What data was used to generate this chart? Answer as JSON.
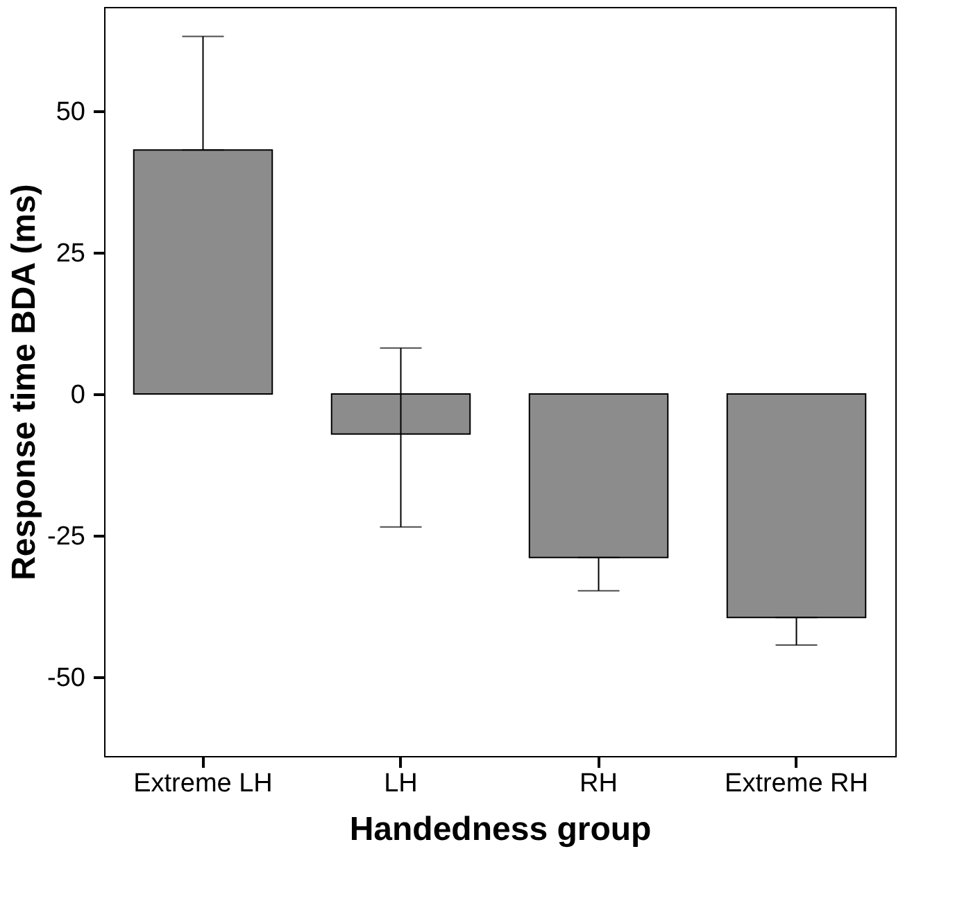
{
  "chart_data": {
    "type": "bar",
    "xlabel": "Handedness group",
    "ylabel": "Response time BDA (ms)",
    "categories": [
      "Extreme LH",
      "LH",
      "RH",
      "Extreme RH"
    ],
    "values": [
      43.1,
      -7.1,
      -28.9,
      -39.5
    ],
    "errors": [
      [
        43.1,
        63.2
      ],
      [
        -23.5,
        8.1
      ],
      [
        -34.8,
        -28.9
      ],
      [
        -44.4,
        -39.5
      ]
    ],
    "color": "#8c8c8c",
    "ylim": [
      -64,
      68.4
    ],
    "yticks": [
      -50,
      -25,
      0,
      25,
      50
    ],
    "grid": false
  }
}
